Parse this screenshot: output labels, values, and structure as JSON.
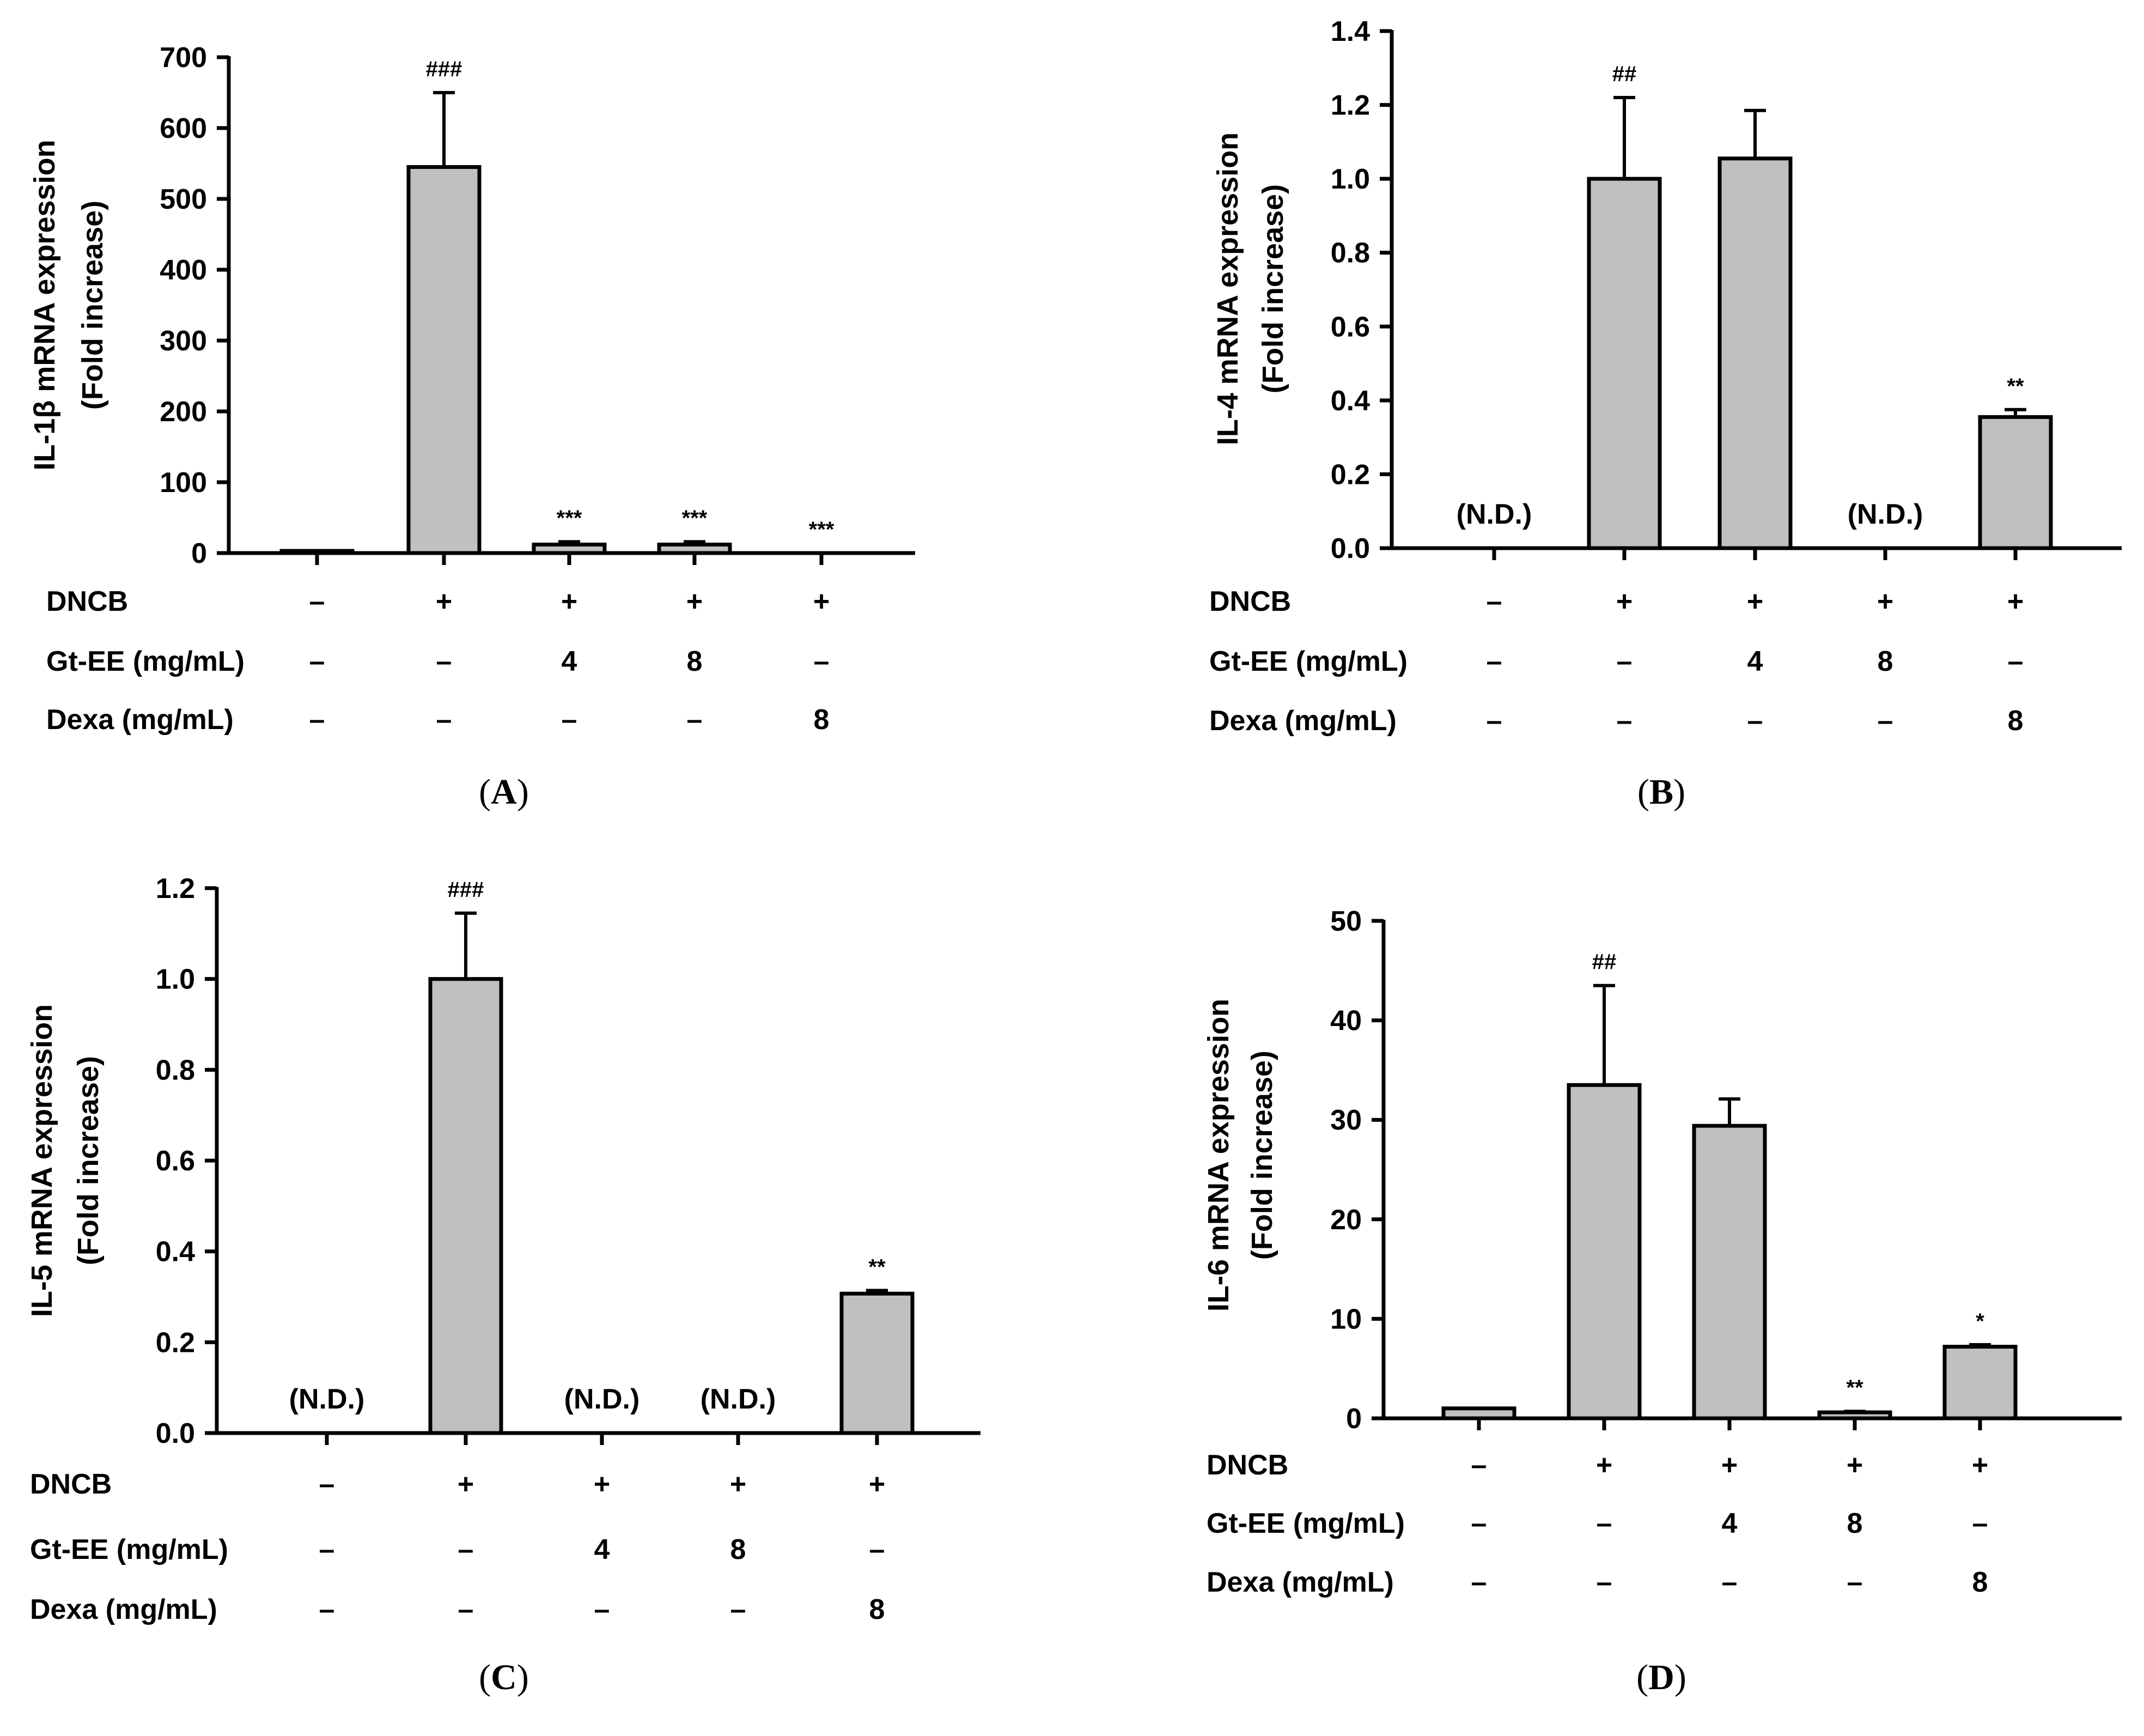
{
  "colors": {
    "bar_fill": "#c0c0c0",
    "bar_stroke": "#000000",
    "background": "#ffffff"
  },
  "chart_data": [
    {
      "panel": "(A)",
      "type": "bar",
      "ylabel": "IL-1β mRNA expression",
      "ylabel2": "(Fold increase)",
      "ylim": [
        0,
        700
      ],
      "yticks": [
        "0",
        "100",
        "200",
        "300",
        "400",
        "500",
        "600",
        "700"
      ],
      "ytick_step": 100,
      "values": [
        1,
        545,
        12,
        12,
        0.5
      ],
      "errors": [
        0,
        105,
        4,
        4,
        0
      ],
      "bar_drawn": [
        true,
        true,
        true,
        true,
        false
      ],
      "annotations": [
        "",
        "###",
        "***",
        "***",
        "***"
      ],
      "conditions": [
        {
          "label": "DNCB",
          "values": [
            "–",
            "+",
            "+",
            "+",
            "+"
          ]
        },
        {
          "label": "Gt-EE (mg/mL)",
          "values": [
            "–",
            "–",
            "4",
            "8",
            "–"
          ]
        },
        {
          "label": "Dexa (mg/mL)",
          "values": [
            "–",
            "–",
            "–",
            "–",
            "8"
          ]
        }
      ]
    },
    {
      "panel": "(B)",
      "type": "bar",
      "ylabel": "IL-4 mRNA expression",
      "ylabel2": "(Fold increase)",
      "ylim": [
        0,
        1.4
      ],
      "yticks": [
        "0.0",
        "0.2",
        "0.4",
        "0.6",
        "0.8",
        "1.0",
        "1.2",
        "1.4"
      ],
      "ytick_step": 0.2,
      "values": [
        0,
        1.0,
        1.055,
        0,
        0.355
      ],
      "errors": [
        0,
        0.22,
        0.13,
        0,
        0.02
      ],
      "bar_drawn": [
        false,
        true,
        true,
        false,
        true
      ],
      "annotations": [
        "(N.D.)",
        "##",
        "",
        "(N.D.)",
        "**"
      ],
      "conditions": [
        {
          "label": "DNCB",
          "values": [
            "–",
            "+",
            "+",
            "+",
            "+"
          ]
        },
        {
          "label": "Gt-EE (mg/mL)",
          "values": [
            "–",
            "–",
            "4",
            "8",
            "–"
          ]
        },
        {
          "label": "Dexa (mg/mL)",
          "values": [
            "–",
            "–",
            "–",
            "–",
            "8"
          ]
        }
      ]
    },
    {
      "panel": "(C)",
      "type": "bar",
      "ylabel": "IL-5 mRNA expression",
      "ylabel2": "(Fold increase)",
      "ylim": [
        0,
        1.2
      ],
      "yticks": [
        "0.0",
        "0.2",
        "0.4",
        "0.6",
        "0.8",
        "1.0",
        "1.2"
      ],
      "ytick_step": 0.2,
      "values": [
        0,
        1.0,
        0,
        0,
        0.307
      ],
      "errors": [
        0,
        0.145,
        0,
        0,
        0.007
      ],
      "bar_drawn": [
        false,
        true,
        false,
        false,
        true
      ],
      "annotations": [
        "(N.D.)",
        "###",
        "(N.D.)",
        "(N.D.)",
        "**"
      ],
      "conditions": [
        {
          "label": "DNCB",
          "values": [
            "–",
            "+",
            "+",
            "+",
            "+"
          ]
        },
        {
          "label": "Gt-EE (mg/mL)",
          "values": [
            "–",
            "–",
            "4",
            "8",
            "–"
          ]
        },
        {
          "label": "Dexa (mg/mL)",
          "values": [
            "–",
            "–",
            "–",
            "–",
            "8"
          ]
        }
      ]
    },
    {
      "panel": "(D)",
      "type": "bar",
      "ylabel": "IL-6 mRNA expression",
      "ylabel2": "(Fold increase)",
      "ylim": [
        0,
        50
      ],
      "yticks": [
        "0",
        "10",
        "20",
        "30",
        "40",
        "50"
      ],
      "ytick_step": 10,
      "values": [
        1.0,
        33.5,
        29.4,
        0.6,
        7.2
      ],
      "errors": [
        0,
        10.0,
        2.7,
        0.1,
        0.2
      ],
      "bar_drawn": [
        true,
        true,
        true,
        true,
        true
      ],
      "annotations": [
        "",
        "##",
        "",
        "**",
        "*"
      ],
      "conditions": [
        {
          "label": "DNCB",
          "values": [
            "–",
            "+",
            "+",
            "+",
            "+"
          ]
        },
        {
          "label": "Gt-EE (mg/mL)",
          "values": [
            "–",
            "–",
            "4",
            "8",
            "–"
          ]
        },
        {
          "label": "Dexa (mg/mL)",
          "values": [
            "–",
            "–",
            "–",
            "–",
            "8"
          ]
        }
      ]
    }
  ]
}
